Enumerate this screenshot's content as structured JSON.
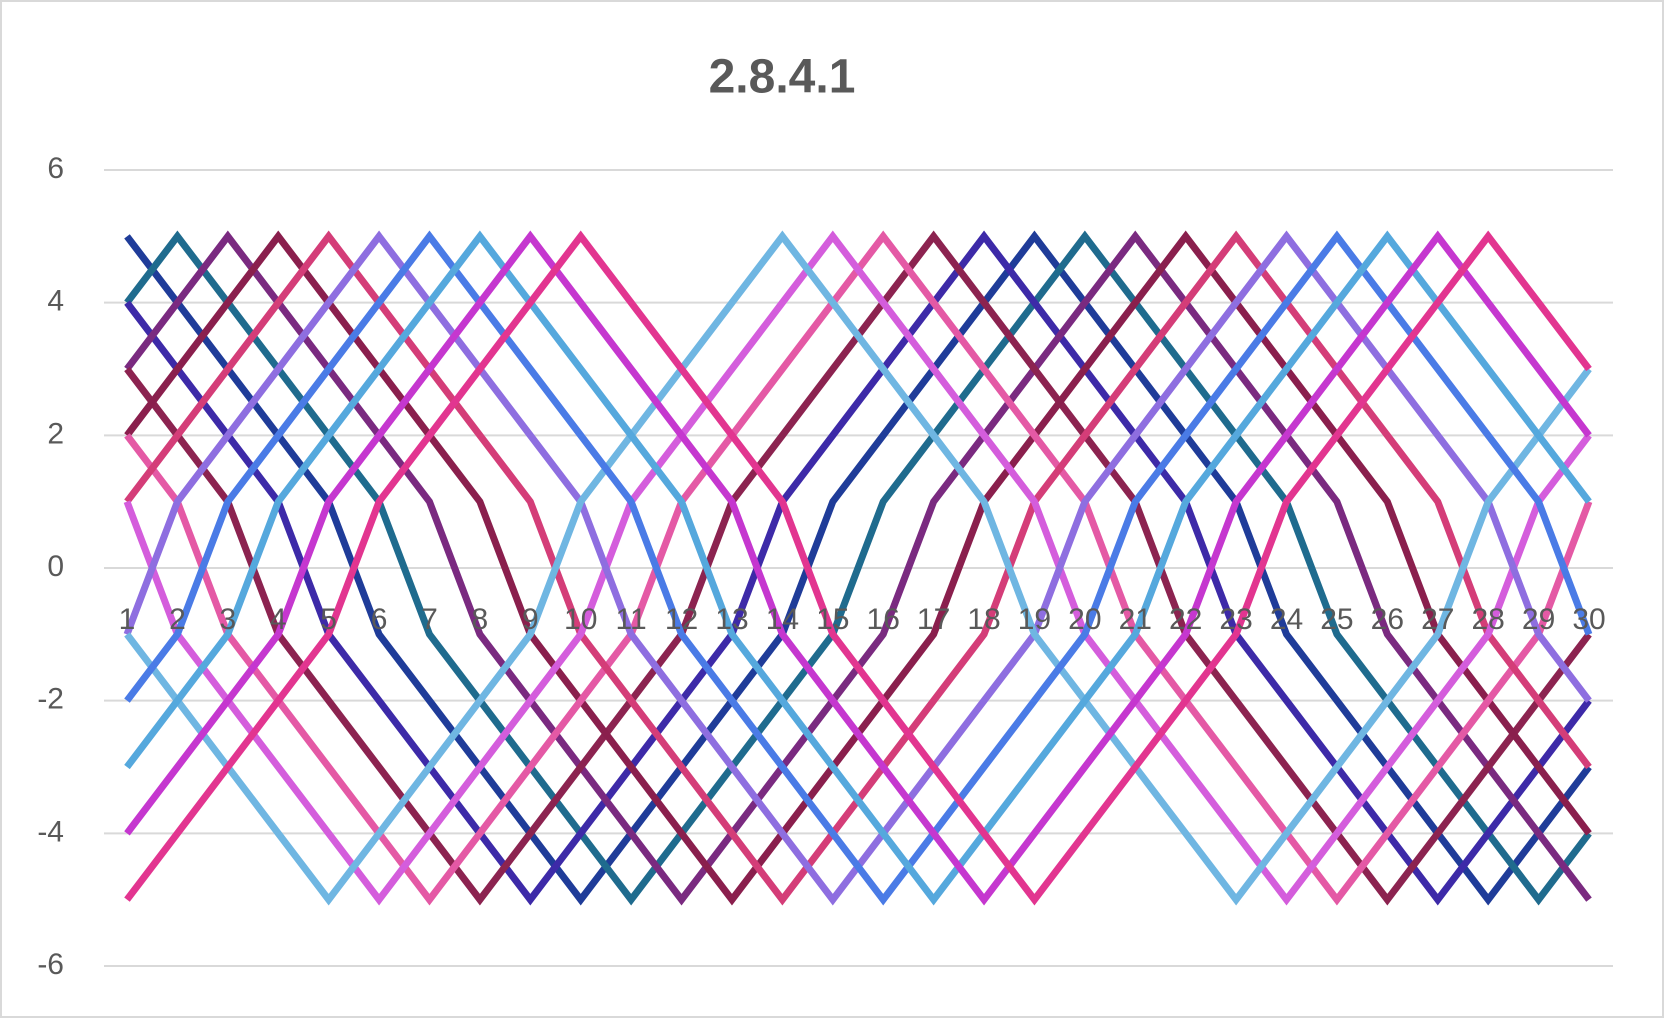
{
  "chart_data": {
    "type": "line",
    "title": "2.8.4.1",
    "categories": [
      1,
      2,
      3,
      4,
      5,
      6,
      7,
      8,
      9,
      10,
      11,
      12,
      13,
      14,
      15,
      16,
      17,
      18,
      19,
      20,
      21,
      22,
      23,
      24,
      25,
      26,
      27,
      28,
      29,
      30
    ],
    "ylim": [
      -6,
      6
    ],
    "yticks": [
      -6,
      -4,
      -2,
      0,
      2,
      4,
      6
    ],
    "grid": true,
    "series": [
      {
        "color": "#1f3c99",
        "values": [
          5,
          4,
          3,
          2,
          1,
          -1,
          -2,
          -3,
          -4,
          -5,
          -4,
          -3,
          -2,
          -1,
          1,
          2,
          3,
          4,
          5,
          4,
          3,
          2,
          1,
          -1,
          -2,
          -3,
          -4,
          -5,
          -4,
          -3
        ]
      },
      {
        "color": "#1f6b8e",
        "values": [
          4,
          5,
          4,
          3,
          2,
          1,
          -1,
          -2,
          -3,
          -4,
          -5,
          -4,
          -3,
          -2,
          -1,
          1,
          2,
          3,
          4,
          5,
          4,
          3,
          2,
          1,
          -1,
          -2,
          -3,
          -4,
          -5,
          -4
        ]
      },
      {
        "color": "#3d2aa8",
        "values": [
          4,
          3,
          2,
          1,
          -1,
          -2,
          -3,
          -4,
          -5,
          -4,
          -3,
          -2,
          -1,
          1,
          2,
          3,
          4,
          5,
          4,
          3,
          2,
          1,
          -1,
          -2,
          -3,
          -4,
          -5,
          -4,
          -3,
          -2
        ]
      },
      {
        "color": "#7a2a80",
        "values": [
          3,
          4,
          5,
          4,
          3,
          2,
          1,
          -1,
          -2,
          -3,
          -4,
          -5,
          -4,
          -3,
          -2,
          -1,
          1,
          2,
          3,
          4,
          5,
          4,
          3,
          2,
          1,
          -1,
          -2,
          -3,
          -4,
          -5
        ]
      },
      {
        "color": "#8c2350",
        "values": [
          3,
          2,
          1,
          -1,
          -2,
          -3,
          -4,
          -5,
          -4,
          -3,
          -2,
          -1,
          1,
          2,
          3,
          4,
          5,
          4,
          3,
          2,
          1,
          -1,
          -2,
          -3,
          -4,
          -5,
          -4,
          -3,
          -2,
          -1
        ]
      },
      {
        "color": "#8a1f4d",
        "values": [
          2,
          3,
          4,
          5,
          4,
          3,
          2,
          1,
          -1,
          -2,
          -3,
          -4,
          -5,
          -4,
          -3,
          -2,
          -1,
          1,
          2,
          3,
          4,
          5,
          4,
          3,
          2,
          1,
          -1,
          -2,
          -3,
          -4
        ]
      },
      {
        "color": "#e459a5",
        "values": [
          2,
          1,
          -1,
          -2,
          -3,
          -4,
          -5,
          -4,
          -3,
          -2,
          -1,
          1,
          2,
          3,
          4,
          5,
          4,
          3,
          2,
          1,
          -1,
          -2,
          -3,
          -4,
          -5,
          -4,
          -3,
          -2,
          -1,
          1
        ]
      },
      {
        "color": "#d43d78",
        "values": [
          1,
          2,
          3,
          4,
          5,
          4,
          3,
          2,
          1,
          -1,
          -2,
          -3,
          -4,
          -5,
          -4,
          -3,
          -2,
          -1,
          1,
          2,
          3,
          4,
          5,
          4,
          3,
          2,
          1,
          -1,
          -2,
          -3
        ]
      },
      {
        "color": "#d45ddc",
        "values": [
          1,
          -1,
          -2,
          -3,
          -4,
          -5,
          -4,
          -3,
          -2,
          -1,
          1,
          2,
          3,
          4,
          5,
          4,
          3,
          2,
          1,
          -1,
          -2,
          -3,
          -4,
          -5,
          -4,
          -3,
          -2,
          -1,
          1,
          2
        ]
      },
      {
        "color": "#8e6ee0",
        "values": [
          -1,
          1,
          2,
          3,
          4,
          5,
          4,
          3,
          2,
          1,
          -1,
          -2,
          -3,
          -4,
          -5,
          -4,
          -3,
          -2,
          -1,
          1,
          2,
          3,
          4,
          5,
          4,
          3,
          2,
          1,
          -1,
          -2
        ]
      },
      {
        "color": "#6fb6e2",
        "values": [
          -1,
          -2,
          -3,
          -4,
          -5,
          -4,
          -3,
          -2,
          -1,
          1,
          2,
          3,
          4,
          5,
          4,
          3,
          2,
          1,
          -1,
          -2,
          -3,
          -4,
          -5,
          -4,
          -3,
          -2,
          -1,
          1,
          2,
          3
        ]
      },
      {
        "color": "#4a7be6",
        "values": [
          -2,
          -1,
          1,
          2,
          3,
          4,
          5,
          4,
          3,
          2,
          1,
          -1,
          -2,
          -3,
          -4,
          -5,
          -4,
          -3,
          -2,
          -1,
          1,
          2,
          3,
          4,
          5,
          4,
          3,
          2,
          1,
          -1
        ]
      },
      {
        "color": "#55a8dd",
        "values": [
          -3,
          -2,
          -1,
          1,
          2,
          3,
          4,
          5,
          4,
          3,
          2,
          1,
          -1,
          -2,
          -3,
          -4,
          -5,
          -4,
          -3,
          -2,
          -1,
          1,
          2,
          3,
          4,
          5,
          4,
          3,
          2,
          1
        ]
      },
      {
        "color": "#c537cf",
        "values": [
          -4,
          -3,
          -2,
          -1,
          1,
          2,
          3,
          4,
          5,
          4,
          3,
          2,
          1,
          -1,
          -2,
          -3,
          -4,
          -5,
          -4,
          -3,
          -2,
          -1,
          1,
          2,
          3,
          4,
          5,
          4,
          3,
          2
        ]
      },
      {
        "color": "#e23590",
        "values": [
          -5,
          -4,
          -3,
          -2,
          -1,
          1,
          2,
          3,
          4,
          5,
          4,
          3,
          2,
          1,
          -1,
          -2,
          -3,
          -4,
          -5,
          -4,
          -3,
          -2,
          -1,
          1,
          2,
          3,
          4,
          5,
          4,
          3
        ]
      }
    ]
  }
}
